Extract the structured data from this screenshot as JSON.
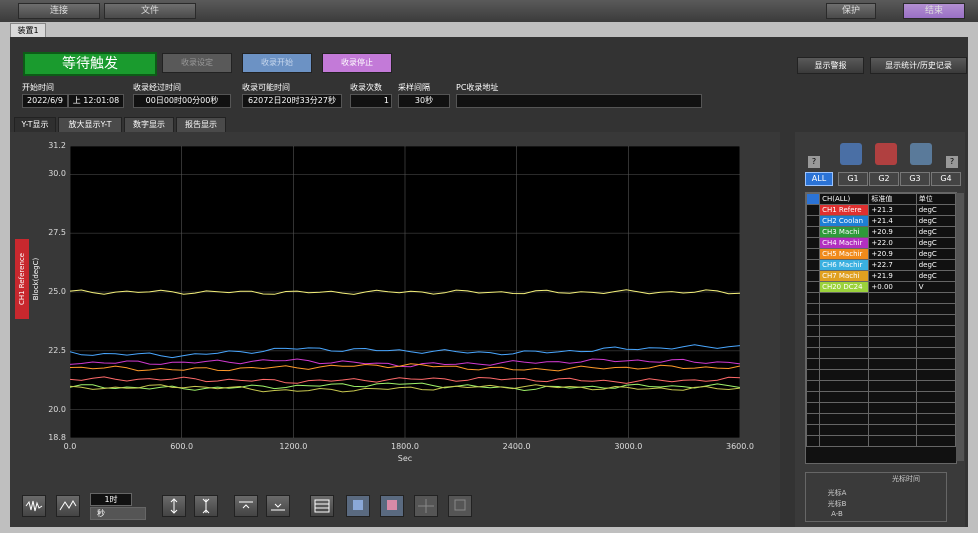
{
  "topbar": {
    "connect_label": "连接",
    "file_label": "文件",
    "protect_label": "保护",
    "end_label": "结束"
  },
  "device_tab": "装置1",
  "controls": {
    "status": "等待触发",
    "acq_setting": "收录设定",
    "acq_start": "收录开始",
    "acq_stop": "收录停止",
    "alarm_display": "显示警报",
    "stats_history": "显示统计/历史记录"
  },
  "info": {
    "start_time_label": "开始时间",
    "start_time_date": "2022/6/9",
    "start_time_time": "上 12:01:08",
    "elapsed_label": "收录经过时间",
    "elapsed_value": "00日00时00分00秒",
    "possible_label": "收录可能时间",
    "possible_value": "62072日20时33分27秒",
    "count_label": "收录次数",
    "count_value": "1",
    "interval_label": "采样间隔",
    "interval_value": "30秒",
    "pc_path_label": "PC收录地址",
    "pc_path_value": ""
  },
  "view_tabs": [
    "Y-T显示",
    "放大显示Y-T",
    "数字显示",
    "报告显示"
  ],
  "chart_data": {
    "type": "line",
    "ylabel": "CH1 Reference Block(degC)",
    "xlabel": "Sec",
    "ylim": [
      18.8,
      31.2
    ],
    "xlim": [
      0,
      3600
    ],
    "y_ticks": [
      "31.2",
      "30.0",
      "27.5",
      "25.0",
      "22.5",
      "20.0",
      "18.8"
    ],
    "x_ticks": [
      "0.0",
      "600.0",
      "1200.0",
      "1800.0",
      "2400.0",
      "3000.0",
      "3600.0"
    ],
    "grid": true,
    "series": [
      {
        "color": "#f4f07a",
        "values": [
          25.0,
          25.0,
          24.98,
          25.0,
          24.99,
          25.0,
          25.0
        ]
      },
      {
        "color": "#4aa7ff",
        "values": [
          22.4,
          22.3,
          22.6,
          22.5,
          22.4,
          22.6,
          22.7
        ]
      },
      {
        "color": "#d03ad0",
        "values": [
          22.0,
          22.0,
          22.1,
          21.9,
          22.0,
          22.1,
          22.0
        ]
      },
      {
        "color": "#ff9a2a",
        "values": [
          21.8,
          21.7,
          21.8,
          21.9,
          21.7,
          21.8,
          21.8
        ]
      },
      {
        "color": "#ff6b6b",
        "values": [
          21.3,
          21.3,
          21.2,
          21.3,
          21.3,
          21.2,
          21.3
        ]
      },
      {
        "color": "#9ff26a",
        "values": [
          21.0,
          20.9,
          21.0,
          21.1,
          20.9,
          21.0,
          21.0
        ]
      },
      {
        "color": "#c8c850",
        "values": [
          20.9,
          21.0,
          20.8,
          20.9,
          21.0,
          20.9,
          20.9
        ]
      }
    ]
  },
  "groups": {
    "help": "?",
    "all": "ALL",
    "g1": "G1",
    "g2": "G2",
    "g3": "G3",
    "g4": "G4"
  },
  "channel_table": {
    "headers": [
      "CH(ALL)",
      "标准值",
      "单位"
    ],
    "rows": [
      {
        "name": "CH1 Refere",
        "value": "+21.3",
        "unit": "degC",
        "color": "#e03030"
      },
      {
        "name": "CH2 Coolan",
        "value": "+21.4",
        "unit": "degC",
        "color": "#1e7fd6"
      },
      {
        "name": "CH3 Machi",
        "value": "+20.9",
        "unit": "degC",
        "color": "#2e9a3a"
      },
      {
        "name": "CH4 Machir",
        "value": "+22.0",
        "unit": "degC",
        "color": "#b22fc0"
      },
      {
        "name": "CH5 Machir",
        "value": "+20.9",
        "unit": "degC",
        "color": "#f08a1a"
      },
      {
        "name": "CH6 Machir",
        "value": "+22.7",
        "unit": "degC",
        "color": "#3ab0e0"
      },
      {
        "name": "CH7 Machi",
        "value": "+21.9",
        "unit": "degC",
        "color": "#e0a020"
      },
      {
        "name": "CH20 DC24",
        "value": "+0.00",
        "unit": "V",
        "color": "#9bd23c"
      }
    ]
  },
  "cursor": {
    "header": "光标时间",
    "a": "光标A",
    "b": "光标B",
    "ab": "A-B"
  },
  "time_scale": {
    "value": "1时",
    "unit": "秒"
  }
}
